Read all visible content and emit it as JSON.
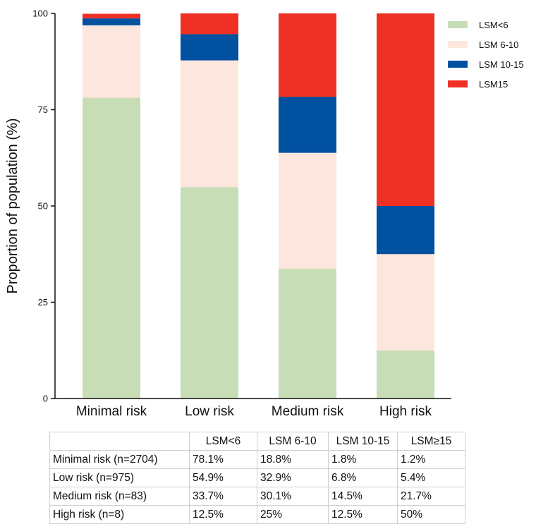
{
  "chart_data": {
    "type": "bar",
    "stacked": true,
    "categories": [
      "Minimal risk",
      "Low risk",
      "Medium risk",
      "High risk"
    ],
    "series": [
      {
        "name": "LSM<6",
        "color": "#c6ddb5",
        "values": [
          78.1,
          54.9,
          33.7,
          12.5
        ]
      },
      {
        "name": "LSM 6-10",
        "color": "#fde6dd",
        "values": [
          18.8,
          32.9,
          30.1,
          25
        ]
      },
      {
        "name": "LSM 10-15",
        "color": "#0051a0",
        "values": [
          1.8,
          6.8,
          14.5,
          12.5
        ]
      },
      {
        "name": "LSM15",
        "color": "#ee3124",
        "values": [
          1.2,
          5.4,
          21.7,
          50
        ]
      }
    ],
    "title": "",
    "xlabel": "",
    "ylabel": "Proportion of population (%)",
    "ylim": [
      0,
      100
    ],
    "yticks": [
      0,
      25,
      50,
      75,
      100
    ],
    "grid": false,
    "legend_position": "top-right"
  },
  "table": {
    "headers": [
      "",
      "LSM<6",
      "LSM 6-10",
      "LSM 10-15",
      "LSM≥15"
    ],
    "rows": [
      [
        "Minimal risk (n=2704)",
        "78.1%",
        "18.8%",
        "1.8%",
        "1.2%"
      ],
      [
        "Low risk (n=975)",
        "54.9%",
        "32.9%",
        "6.8%",
        "5.4%"
      ],
      [
        "Medium risk (n=83)",
        "33.7%",
        "30.1%",
        "14.5%",
        "21.7%"
      ],
      [
        "High risk (n=8)",
        "12.5%",
        "25%",
        "12.5%",
        "50%"
      ]
    ]
  }
}
